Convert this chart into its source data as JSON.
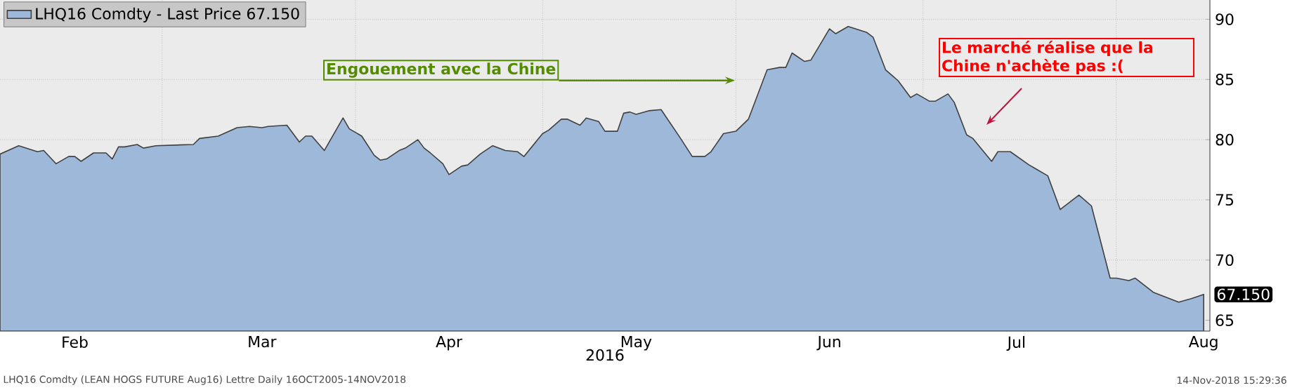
{
  "chart_data": {
    "type": "area",
    "xlabel": "2016",
    "legend": "top left",
    "grid": true,
    "xlim": [
      "2016-02-04",
      "2016-08-16"
    ],
    "ylim": [
      64.1,
      91.6
    ],
    "yticks": [
      65,
      70,
      75,
      80,
      85,
      90
    ],
    "xticks": [
      {
        "value": "2016-02-16",
        "label": "Feb"
      },
      {
        "value": "2016-03-01",
        "label": null
      },
      {
        "value": "2016-03-17",
        "label": "Mar"
      },
      {
        "value": "2016-04-01",
        "label": null
      },
      {
        "value": "2016-04-16",
        "label": "Apr"
      },
      {
        "value": "2016-05-01",
        "label": null
      },
      {
        "value": "2016-05-16",
        "label": "May"
      },
      {
        "value": "2016-06-01",
        "label": null
      },
      {
        "value": "2016-06-16",
        "label": "Jun"
      },
      {
        "value": "2016-07-01",
        "label": null
      },
      {
        "value": "2016-07-16",
        "label": "Jul"
      },
      {
        "value": "2016-08-01",
        "label": null
      },
      {
        "value": "2016-08-15",
        "label": "Aug"
      }
    ],
    "series": [
      {
        "name": "LHQ16 Comdty - Last Price 67.150",
        "color": "#9db8d9",
        "x": [
          "2016-02-04",
          "2016-02-07",
          "2016-02-10",
          "2016-02-11",
          "2016-02-13",
          "2016-02-15",
          "2016-02-16",
          "2016-02-17",
          "2016-02-19",
          "2016-02-21",
          "2016-02-22",
          "2016-02-23",
          "2016-02-24",
          "2016-02-26",
          "2016-02-27",
          "2016-02-29",
          "2016-03-06",
          "2016-03-07",
          "2016-03-10",
          "2016-03-13",
          "2016-03-15",
          "2016-03-17",
          "2016-03-18",
          "2016-03-21",
          "2016-03-23",
          "2016-03-24",
          "2016-03-25",
          "2016-03-27",
          "2016-03-29",
          "2016-03-30",
          "2016-03-31",
          "2016-04-02",
          "2016-04-04",
          "2016-04-05",
          "2016-04-06",
          "2016-04-08",
          "2016-04-09",
          "2016-04-11",
          "2016-04-12",
          "2016-04-13",
          "2016-04-15",
          "2016-04-16",
          "2016-04-18",
          "2016-04-19",
          "2016-04-21",
          "2016-04-23",
          "2016-04-25",
          "2016-04-27",
          "2016-04-28",
          "2016-05-01",
          "2016-05-02",
          "2016-05-04",
          "2016-05-05",
          "2016-05-07",
          "2016-05-08",
          "2016-05-10",
          "2016-05-11",
          "2016-05-13",
          "2016-05-14",
          "2016-05-15",
          "2016-05-16",
          "2016-05-18",
          "2016-05-20",
          "2016-05-23",
          "2016-05-25",
          "2016-05-27",
          "2016-05-28",
          "2016-05-30",
          "2016-06-01",
          "2016-06-03",
          "2016-06-06",
          "2016-06-08",
          "2016-06-09",
          "2016-06-10",
          "2016-06-12",
          "2016-06-13",
          "2016-06-16",
          "2016-06-17",
          "2016-06-19",
          "2016-06-22",
          "2016-06-23",
          "2016-06-25",
          "2016-06-27",
          "2016-06-29",
          "2016-06-30",
          "2016-07-02",
          "2016-07-03",
          "2016-07-05",
          "2016-07-06",
          "2016-07-08",
          "2016-07-09",
          "2016-07-12",
          "2016-07-13",
          "2016-07-15",
          "2016-07-18",
          "2016-07-19",
          "2016-07-21",
          "2016-07-23",
          "2016-07-26",
          "2016-07-28",
          "2016-07-31",
          "2016-08-01",
          "2016-08-03",
          "2016-08-04",
          "2016-08-07",
          "2016-08-11",
          "2016-08-13",
          "2016-08-15"
        ],
        "values": [
          78.8,
          79.5,
          79.0,
          79.1,
          78.0,
          78.6,
          78.6,
          78.2,
          78.9,
          78.9,
          78.4,
          79.4,
          79.4,
          79.6,
          79.3,
          79.5,
          79.6,
          80.1,
          80.3,
          81.0,
          81.1,
          81.0,
          81.1,
          81.2,
          79.8,
          80.3,
          80.3,
          79.1,
          80.9,
          81.8,
          80.9,
          80.3,
          78.7,
          78.3,
          78.4,
          79.1,
          79.3,
          80.0,
          79.3,
          78.9,
          78.0,
          77.1,
          77.8,
          77.9,
          78.8,
          79.5,
          79.1,
          79.0,
          78.6,
          80.5,
          80.8,
          81.7,
          81.7,
          81.2,
          81.8,
          81.5,
          80.7,
          80.7,
          82.2,
          82.3,
          82.1,
          82.4,
          82.5,
          80.2,
          78.6,
          78.6,
          79.0,
          80.5,
          80.7,
          81.7,
          85.8,
          86.0,
          86.0,
          87.2,
          86.5,
          86.6,
          89.2,
          88.8,
          89.4,
          88.9,
          88.5,
          85.8,
          84.9,
          83.5,
          83.8,
          83.2,
          83.2,
          83.8,
          83.1,
          80.4,
          80.1,
          78.2,
          79.0,
          79.0,
          77.9,
          77.6,
          77.0,
          74.2,
          75.4,
          74.5,
          68.5,
          68.5,
          68.3,
          68.5,
          67.3,
          66.5,
          66.8,
          67.15
        ]
      }
    ],
    "annotations": [
      "Engouement avec la Chine",
      "Le marché réalise que la Chine n'achète pas :(",
      "LHQ16 Comdty (LEAN HOGS FUTURE  Aug16) Lettre  Daily 16OCT2005-14NOV2018",
      "14-Nov-2018 15:29:36",
      {
        "text": "67.150",
        "x": "2016-08-15",
        "y": 67.15
      }
    ]
  }
}
